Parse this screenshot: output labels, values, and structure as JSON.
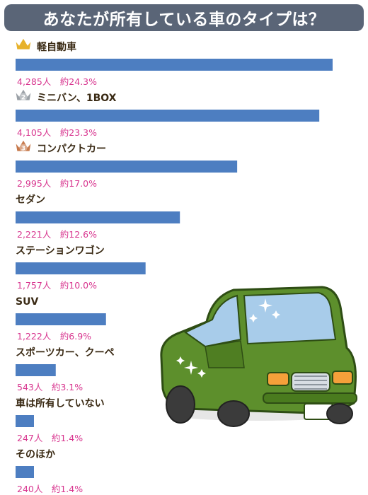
{
  "title": "あなたが所有している車のタイプは？",
  "colors": {
    "title_bg": "#5a6577",
    "bar": "#4d7ec1",
    "value_text": "#d8368f",
    "label_text": "#3a2a14",
    "crown_gold": "#e7b22b",
    "crown_silver": "#9aa0a6",
    "crown_bronze": "#c6784a",
    "car_body": "#5d8f2c",
    "car_window": "#a8ccea"
  },
  "icons": [
    "crown-gold-icon",
    "crown-silver-icon",
    "crown-bronze-icon",
    "car-illustration"
  ],
  "chart_data": {
    "type": "bar",
    "orientation": "horizontal",
    "title": "あなたが所有している車のタイプは？",
    "categories": [
      "軽自動車",
      "ミニバン、1BOX",
      "コンパクトカー",
      "セダン",
      "ステーションワゴン",
      "SUV",
      "スポーツカー、クーペ",
      "車は所有していない",
      "そのほか"
    ],
    "values": [
      4285,
      4105,
      2995,
      2221,
      1757,
      1222,
      543,
      247,
      240
    ],
    "value_labels": [
      "4,285人　約24.3%",
      "4,105人　約23.3%",
      "2,995人　約17.0%",
      "2,221人　約12.6%",
      "1,757人　約10.0%",
      "1,222人　約6.9%",
      "543人　約3.1%",
      "247人　約1.4%",
      "240人　約1.4%"
    ],
    "rank_badges": [
      "",
      "2",
      "3"
    ],
    "grid": false,
    "legend": "none"
  }
}
